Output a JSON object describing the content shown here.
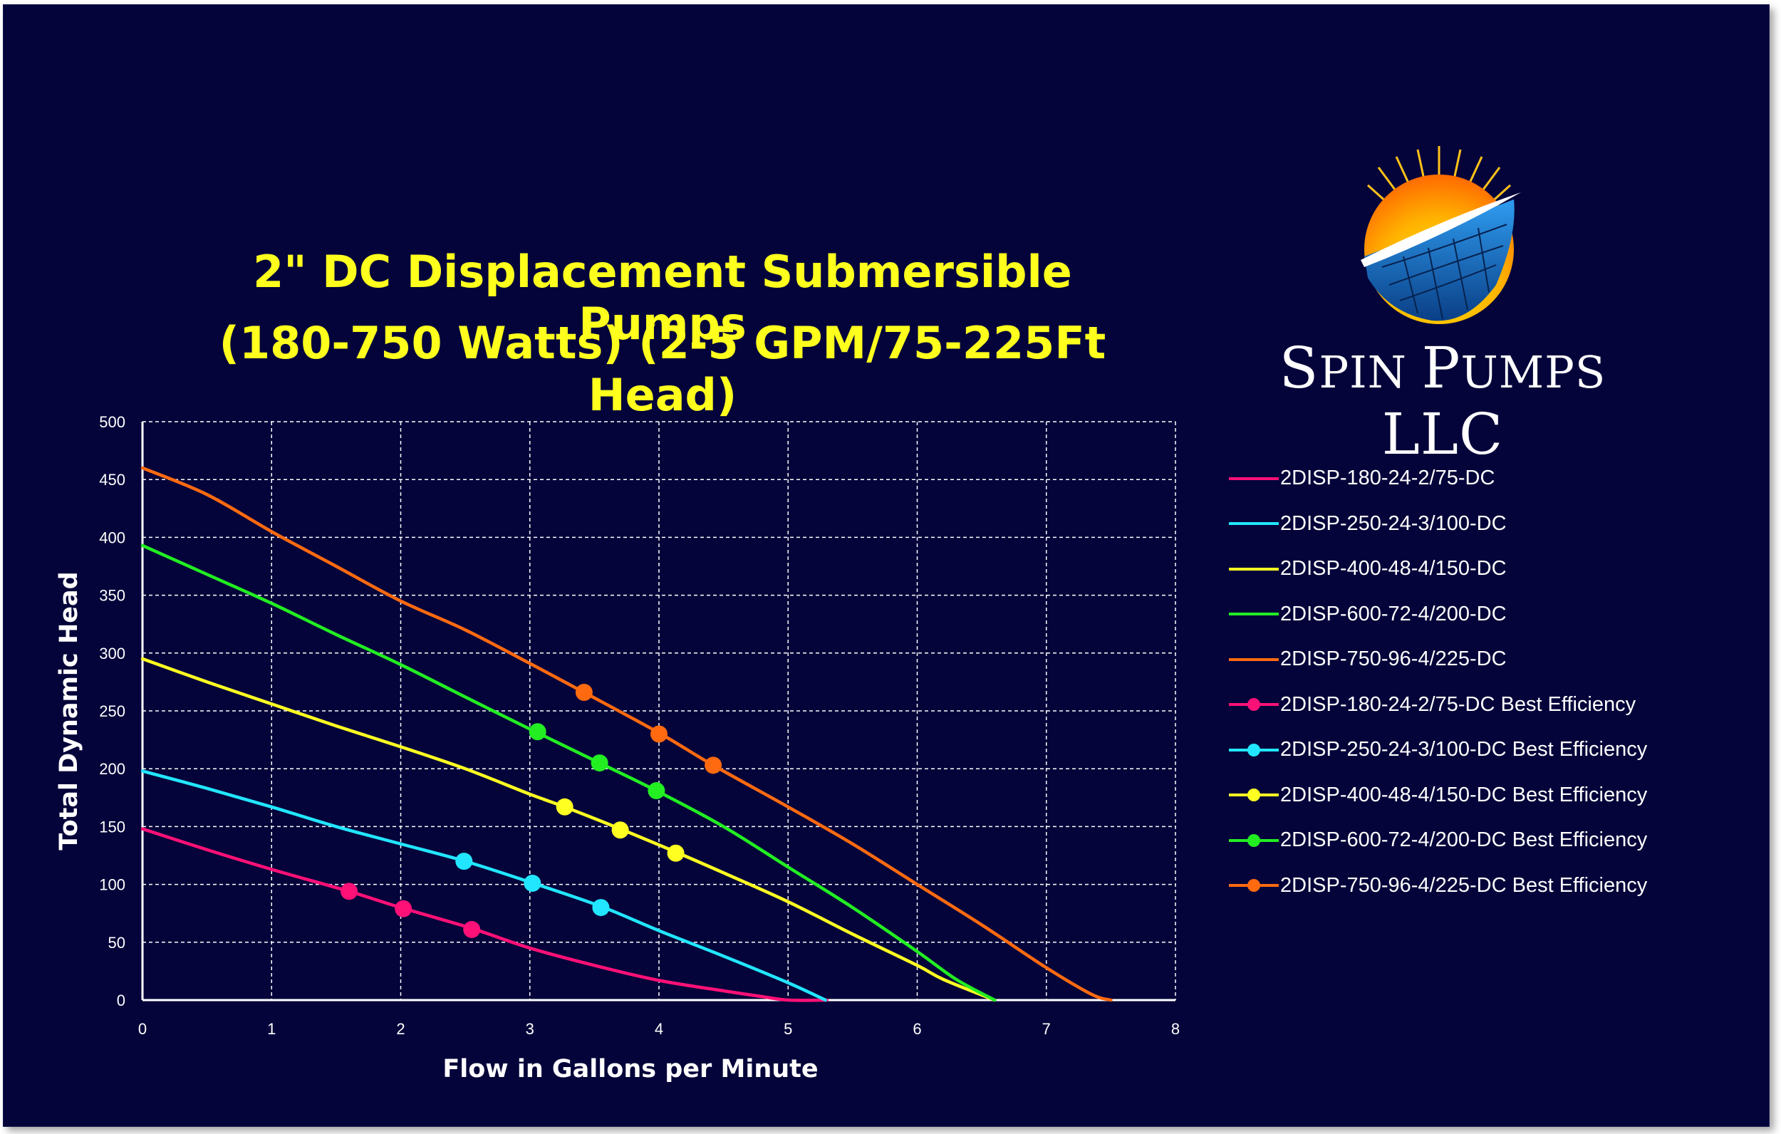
{
  "brand": {
    "name_big1": "S",
    "name_small1": "PIN ",
    "name_big2": "P",
    "name_small2": "UMPS ",
    "name_big3": "LLC"
  },
  "title_line1": "2\" DC Displacement Submersible Pumps",
  "title_line2": "(180-750 Watts) (2-5 GPM/75-225Ft Head)",
  "colors": {
    "background": "#04043a",
    "title": "#ffff1e",
    "pink": "#ff1177",
    "cyan": "#22e6ff",
    "yellow": "#ffff22",
    "green": "#22ee22",
    "orange": "#ff6a10",
    "grid": "#ffffff"
  },
  "legend": [
    {
      "label": "2DISP-180-24-2/75-DC",
      "color": "#ff1177",
      "marker": false
    },
    {
      "label": "2DISP-250-24-3/100-DC",
      "color": "#22e6ff",
      "marker": false
    },
    {
      "label": "2DISP-400-48-4/150-DC",
      "color": "#ffff22",
      "marker": false
    },
    {
      "label": "2DISP-600-72-4/200-DC",
      "color": "#22ee22",
      "marker": false
    },
    {
      "label": "2DISP-750-96-4/225-DC",
      "color": "#ff6a10",
      "marker": false
    },
    {
      "label": "2DISP-180-24-2/75-DC Best Efficiency",
      "color": "#ff1177",
      "marker": true
    },
    {
      "label": "2DISP-250-24-3/100-DC Best Efficiency",
      "color": "#22e6ff",
      "marker": true
    },
    {
      "label": "2DISP-400-48-4/150-DC Best Efficiency",
      "color": "#ffff22",
      "marker": true
    },
    {
      "label": "2DISP-600-72-4/200-DC Best Efficiency",
      "color": "#22ee22",
      "marker": true
    },
    {
      "label": "2DISP-750-96-4/225-DC Best Efficiency",
      "color": "#ff6a10",
      "marker": true
    }
  ],
  "chart_data": {
    "type": "line",
    "xlabel": "Flow in Gallons per Minute",
    "ylabel": "Total Dynamic Head",
    "xlim": [
      0,
      8
    ],
    "ylim": [
      0,
      500
    ],
    "xticks": [
      "0",
      "1",
      "2",
      "3",
      "4",
      "5",
      "6",
      "7",
      "8"
    ],
    "yticks": [
      "0",
      "50",
      "100",
      "150",
      "200",
      "250",
      "300",
      "350",
      "400",
      "450",
      "500"
    ],
    "grid": true,
    "legend_position": "right",
    "series": [
      {
        "name": "2DISP-180-24-2/75-DC",
        "color": "#ff1177",
        "x": [
          0,
          0.5,
          1,
          1.6,
          2,
          2.55,
          3,
          3.5,
          4,
          4.5,
          4.8,
          5.0,
          5.3
        ],
        "y": [
          148,
          130,
          113,
          94,
          80,
          62,
          45,
          30,
          17,
          8,
          3,
          0,
          0
        ]
      },
      {
        "name": "2DISP-250-24-3/100-DC",
        "color": "#22e6ff",
        "x": [
          0,
          0.5,
          1,
          1.5,
          2,
          2.5,
          3,
          3.55,
          4,
          4.5,
          5.0,
          5.29
        ],
        "y": [
          198,
          183,
          167,
          150,
          135,
          120,
          102,
          81,
          60,
          38,
          15,
          0
        ]
      },
      {
        "name": "2DISP-400-48-4/150-DC",
        "color": "#ffff22",
        "x": [
          0,
          0.5,
          1,
          1.5,
          2,
          2.5,
          3,
          3.27,
          3.7,
          4.13,
          4.5,
          5,
          5.5,
          6.0,
          6.2,
          6.6
        ],
        "y": [
          295,
          275,
          256,
          237,
          219,
          200,
          178,
          167,
          148,
          128,
          110,
          85,
          57,
          30,
          18,
          0
        ]
      },
      {
        "name": "2DISP-600-72-4/200-DC",
        "color": "#22ee22",
        "x": [
          0,
          0.5,
          1,
          1.5,
          2,
          2.5,
          3.06,
          3.54,
          3.98,
          4.5,
          5,
          5.5,
          6.0,
          6.3,
          6.6
        ],
        "y": [
          393,
          368,
          343,
          316,
          290,
          262,
          231,
          205,
          181,
          150,
          115,
          80,
          42,
          18,
          0
        ]
      },
      {
        "name": "2DISP-750-96-4/225-DC",
        "color": "#ff6a10",
        "x": [
          0,
          0.5,
          1,
          1.5,
          2,
          2.5,
          3.0,
          3.42,
          4.0,
          4.42,
          5,
          5.5,
          6.0,
          6.5,
          7.0,
          7.35,
          7.5
        ],
        "y": [
          460,
          437,
          405,
          375,
          345,
          320,
          291,
          266,
          231,
          203,
          167,
          135,
          100,
          65,
          28,
          5,
          0
        ]
      }
    ],
    "best_efficiency": [
      {
        "name": "2DISP-180-24-2/75-DC Best Efficiency",
        "color": "#ff1177",
        "x": [
          1.6,
          2.02,
          2.55
        ],
        "y": [
          94,
          79,
          61
        ]
      },
      {
        "name": "2DISP-250-24-3/100-DC Best Efficiency",
        "color": "#22e6ff",
        "x": [
          2.49,
          3.02,
          3.55
        ],
        "y": [
          120,
          101,
          80
        ]
      },
      {
        "name": "2DISP-400-48-4/150-DC Best Efficiency",
        "color": "#ffff22",
        "x": [
          3.27,
          3.7,
          4.13
        ],
        "y": [
          167,
          147,
          127
        ]
      },
      {
        "name": "2DISP-600-72-4/200-DC Best Efficiency",
        "color": "#22ee22",
        "x": [
          3.06,
          3.54,
          3.98
        ],
        "y": [
          232,
          205,
          181
        ]
      },
      {
        "name": "2DISP-750-96-4/225-DC Best Efficiency",
        "color": "#ff6a10",
        "x": [
          3.42,
          4.0,
          4.42
        ],
        "y": [
          266,
          230,
          203
        ]
      }
    ]
  }
}
